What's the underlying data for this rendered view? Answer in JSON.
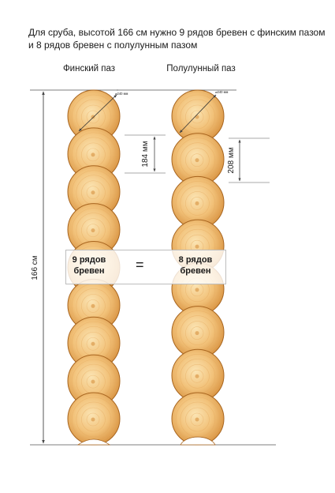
{
  "heading": {
    "line1": "Для сруба,  высотой 166 см нужно 9 рядов бревен с финским пазом",
    "line2": "и 8 рядов бревен с полулунным пазом"
  },
  "columns": {
    "left": {
      "title": "Финский паз",
      "log_count": 9,
      "diameter_label": "⌀240 мм",
      "step_label": "184 мм"
    },
    "right": {
      "title": "Полулунный паз",
      "log_count": 8,
      "diameter_label": "⌀240 мм",
      "step_label": "208 мм"
    }
  },
  "height_label": "166 см",
  "comparison": {
    "left_line1": "9 рядов",
    "left_line2": "бревен",
    "equals": "=",
    "right_line1": "8 рядов",
    "right_line2": "бревен"
  },
  "colors": {
    "wood_light": "#fbe4b3",
    "wood_mid": "#f2c27a",
    "wood_dark": "#d7913f",
    "wood_edge": "#a8651f",
    "ring": "#e6aa5f",
    "line": "#444444"
  }
}
